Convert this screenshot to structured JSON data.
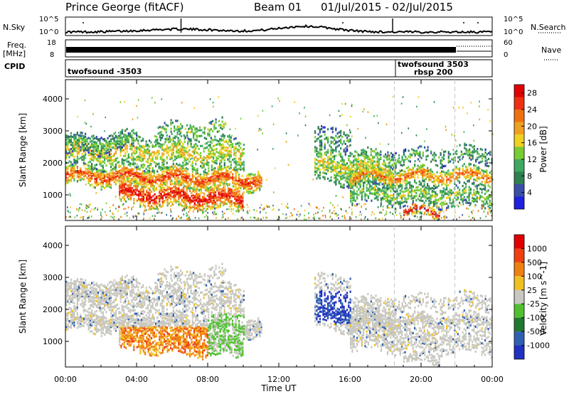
{
  "header": {
    "title": "Prince George (fitACF)",
    "beam": "Beam 01",
    "date_range": "01/Jul/2015 - 02/Jul/2015"
  },
  "top_panels": {
    "nsky": {
      "label": "N.Sky",
      "left_ticks": [
        "10^5",
        "10^0"
      ]
    },
    "nsearch": {
      "label": "N.Search",
      "right_ticks": [
        "10^5",
        "10^0"
      ]
    },
    "freq": {
      "label_line1": "Freq.",
      "label_line2": "[MHz]",
      "left_ticks": [
        "18",
        "8"
      ],
      "right_ticks": [
        "60",
        "0"
      ]
    },
    "nave": {
      "label": "Nave"
    },
    "cpid": {
      "label": "CPID"
    }
  },
  "cpid_labels": [
    "twofsound -3503",
    "twofsound 3503",
    "rbsp 200"
  ],
  "colors": {
    "power_scale": [
      "#2020e0",
      "#3a4fa8",
      "#2f8050",
      "#3ea860",
      "#77cc33",
      "#f0d020",
      "#f0a020",
      "#f07010",
      "#f03010",
      "#e00000"
    ],
    "velocity_scale": [
      "#2030c0",
      "#3060b0",
      "#207830",
      "#50c030",
      "#c8c8c0",
      "#f0c020",
      "#f08010",
      "#f04010",
      "#e00000"
    ]
  },
  "chart_data": [
    {
      "type": "heatmap",
      "panel": "power",
      "ylabel": "Slant Range [km]",
      "yticks": [
        1000,
        2000,
        3000,
        4000
      ],
      "ylim": [
        200,
        4600
      ],
      "xlim": [
        "00:00",
        "24:00"
      ],
      "colorbar": {
        "label": "Power [dB]",
        "ticks": [
          "4",
          "8",
          "12",
          "16",
          "20",
          "24",
          "28"
        ],
        "range": [
          0,
          30
        ]
      },
      "echo_bands_approx": [
        {
          "start_hour": 0,
          "end_hour": 11,
          "range_km": [
            1300,
            2000
          ],
          "power_db": 22
        },
        {
          "start_hour": 3,
          "end_hour": 10,
          "range_km": [
            600,
            1300
          ],
          "power_db": 26
        },
        {
          "start_hour": 0,
          "end_hour": 10,
          "range_km": [
            2000,
            3100
          ],
          "power_db": 16
        },
        {
          "start_hour": 14,
          "end_hour": 24,
          "range_km": [
            600,
            2700
          ],
          "power_db": 14
        }
      ]
    },
    {
      "type": "heatmap",
      "panel": "velocity",
      "ylabel": "Slant Range [km]",
      "yticks": [
        1000,
        2000,
        3000,
        4000
      ],
      "ylim": [
        200,
        4600
      ],
      "xlim": [
        "00:00",
        "24:00"
      ],
      "xticks": [
        "00:00",
        "04:00",
        "08:00",
        "12:00",
        "16:00",
        "20:00",
        "00:00"
      ],
      "xlabel": "Time UT",
      "colorbar": {
        "label": "Velocity [m s^-1]",
        "ticks": [
          "1000",
          "500",
          "100",
          "25",
          "-25",
          "-100",
          "-500",
          "-1000"
        ]
      }
    }
  ]
}
